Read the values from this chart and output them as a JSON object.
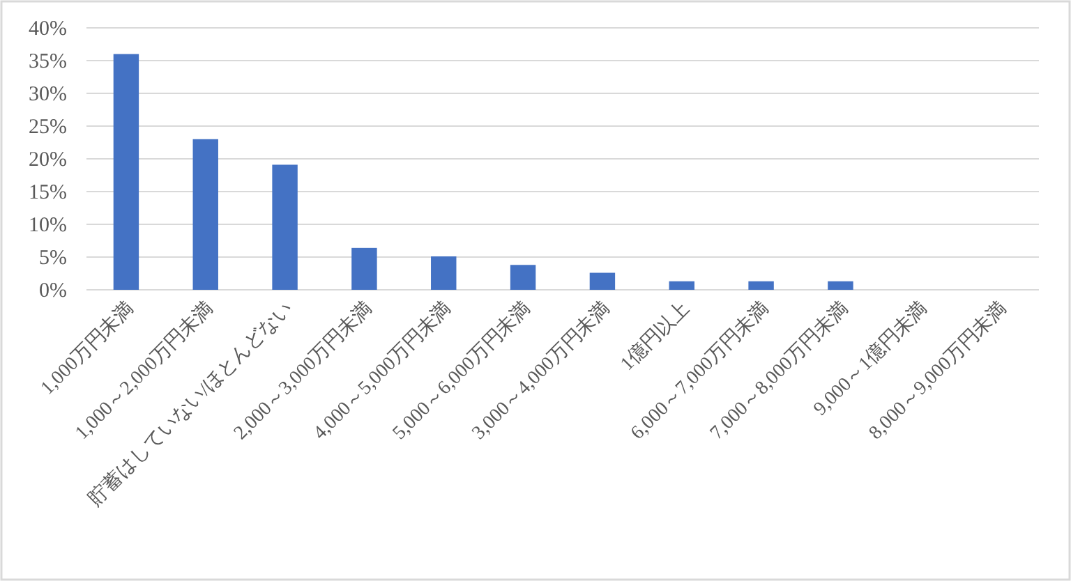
{
  "chart_data": {
    "type": "bar",
    "categories": [
      "1,000万円未満",
      "1,000～2,000万円未満",
      "貯蓄はしていない/ほとんどない",
      "2,000～3,000万円未満",
      "4,000～5,000万円未満",
      "5,000～6,000万円未満",
      "3,000～4,000万円未満",
      "1億円以上",
      "6,000～7,000万円未満",
      "7,000～8,000万円未満",
      "9,000～1億円未満",
      "8,000～9,000万円未満"
    ],
    "values": [
      36,
      23,
      19.1,
      6.4,
      5.1,
      3.8,
      2.6,
      1.3,
      1.3,
      1.3,
      0,
      0
    ],
    "color": "#4472c4",
    "ylim": [
      0,
      40
    ],
    "yticks": [
      {
        "value": 0,
        "label": "0%"
      },
      {
        "value": 5,
        "label": "5%"
      },
      {
        "value": 10,
        "label": "10%"
      },
      {
        "value": 15,
        "label": "15%"
      },
      {
        "value": 20,
        "label": "20%"
      },
      {
        "value": 25,
        "label": "25%"
      },
      {
        "value": 30,
        "label": "30%"
      },
      {
        "value": 35,
        "label": "35%"
      },
      {
        "value": 40,
        "label": "40%"
      }
    ],
    "grid": "y"
  }
}
